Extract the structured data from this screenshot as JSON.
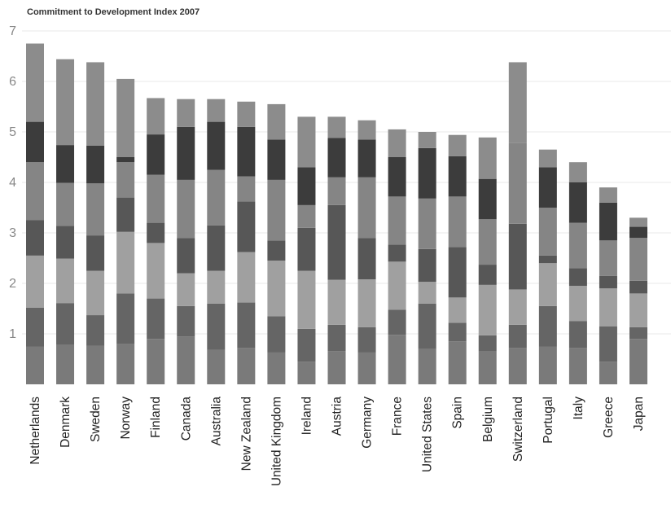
{
  "chart_data": {
    "type": "bar",
    "stacked": true,
    "title": "Commitment to Development Index 2007",
    "xlabel": "",
    "ylabel": "",
    "ylim": [
      0,
      7
    ],
    "yticks": [
      "1",
      "2",
      "3",
      "4",
      "5",
      "6",
      "7"
    ],
    "grid": true,
    "categories": [
      "Netherlands",
      "Denmark",
      "Sweden",
      "Norway",
      "Finland",
      "Canada",
      "Australia",
      "New Zealand",
      "United Kingdom",
      "Ireland",
      "Austria",
      "Germany",
      "France",
      "United States",
      "Spain",
      "Belgium",
      "Switzerland",
      "Portugal",
      "Italy",
      "Greece",
      "Japan"
    ],
    "series": [
      {
        "color": "#7a7a7a",
        "values": [
          0.75,
          0.78,
          0.76,
          0.8,
          0.9,
          0.95,
          0.68,
          0.72,
          0.63,
          0.45,
          0.66,
          0.63,
          0.98,
          0.7,
          0.85,
          0.65,
          0.72,
          0.75,
          0.72,
          0.45,
          0.9
        ]
      },
      {
        "color": "#656565",
        "values": [
          0.77,
          0.83,
          0.61,
          1.0,
          0.8,
          0.6,
          0.92,
          0.9,
          0.72,
          0.65,
          0.52,
          0.5,
          0.5,
          0.9,
          0.37,
          0.32,
          0.46,
          0.8,
          0.53,
          0.7,
          0.23
        ]
      },
      {
        "color": "#a0a0a0",
        "values": [
          1.03,
          0.88,
          0.88,
          1.22,
          1.1,
          0.65,
          0.65,
          1.0,
          1.1,
          1.15,
          0.89,
          0.95,
          0.95,
          0.43,
          0.5,
          1.0,
          0.7,
          0.85,
          0.7,
          0.75,
          0.67
        ]
      },
      {
        "color": "#575757",
        "values": [
          0.7,
          0.65,
          0.7,
          0.68,
          0.4,
          0.7,
          0.9,
          1.0,
          0.4,
          0.85,
          1.48,
          0.82,
          0.34,
          0.65,
          1.0,
          0.4,
          1.3,
          0.15,
          0.35,
          0.25,
          0.25
        ]
      },
      {
        "color": "#858585",
        "values": [
          1.15,
          0.85,
          1.03,
          0.7,
          0.95,
          1.15,
          1.1,
          0.5,
          1.2,
          0.45,
          0.55,
          1.2,
          0.95,
          1.0,
          1.0,
          0.9,
          1.6,
          0.95,
          0.9,
          0.7,
          0.85
        ]
      },
      {
        "color": "#3c3c3c",
        "values": [
          0.8,
          0.75,
          0.75,
          0.1,
          0.8,
          1.05,
          0.95,
          0.98,
          0.8,
          0.75,
          0.78,
          0.75,
          0.78,
          1.0,
          0.8,
          0.8,
          0.0,
          0.8,
          0.8,
          0.75,
          0.22
        ]
      },
      {
        "color": "#8c8c8c",
        "values": [
          1.55,
          1.7,
          1.65,
          1.55,
          0.72,
          0.55,
          0.45,
          0.5,
          0.7,
          1.0,
          0.42,
          0.38,
          0.55,
          0.32,
          0.42,
          0.82,
          1.6,
          0.35,
          0.4,
          0.3,
          0.18
        ]
      }
    ]
  }
}
